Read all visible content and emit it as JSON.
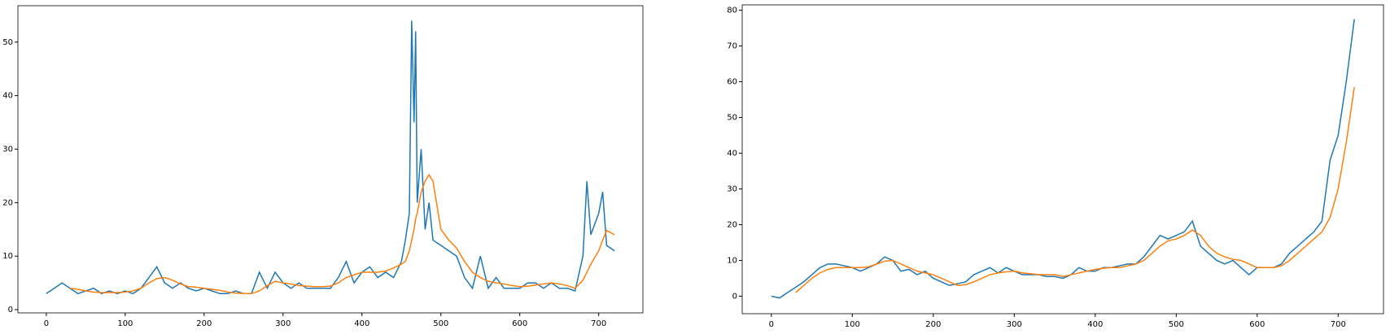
{
  "chart_data": [
    {
      "type": "line",
      "x": [
        0,
        10,
        20,
        30,
        40,
        50,
        60,
        70,
        80,
        90,
        100,
        110,
        120,
        130,
        140,
        150,
        160,
        170,
        180,
        190,
        200,
        210,
        220,
        230,
        240,
        250,
        260,
        270,
        280,
        290,
        300,
        310,
        320,
        330,
        340,
        350,
        360,
        370,
        380,
        390,
        400,
        410,
        420,
        430,
        440,
        450,
        455,
        460,
        463,
        466,
        468,
        470,
        475,
        480,
        485,
        490,
        500,
        510,
        520,
        530,
        540,
        550,
        560,
        570,
        580,
        590,
        600,
        610,
        620,
        630,
        640,
        650,
        660,
        670,
        680,
        685,
        690,
        700,
        705,
        710,
        720
      ],
      "series": [
        {
          "color": "#1f77b4",
          "values": [
            3,
            4,
            5,
            4,
            3,
            3.5,
            4,
            3,
            3.5,
            3,
            3.5,
            3,
            4,
            6,
            8,
            5,
            4,
            5,
            4,
            3.5,
            4,
            3.5,
            3,
            3,
            3.5,
            3,
            3,
            7,
            4,
            7,
            5,
            4,
            5,
            4,
            4,
            4,
            4,
            6,
            9,
            5,
            7,
            8,
            6,
            7,
            6,
            9,
            13,
            18,
            54,
            35,
            52,
            20,
            30,
            15,
            20,
            13,
            12,
            11,
            10,
            6,
            4,
            10,
            4,
            6,
            4,
            4,
            4,
            5,
            5,
            4,
            5,
            4,
            4,
            3.5,
            10,
            24,
            14,
            18,
            22,
            12,
            11
          ]
        },
        {
          "color": "#ff7f0e",
          "values": [
            null,
            null,
            null,
            4,
            3.8,
            3.5,
            3.3,
            3.2,
            3.2,
            3.2,
            3.3,
            3.5,
            4,
            5,
            5.8,
            6,
            5.5,
            4.8,
            4.3,
            4.2,
            4,
            3.8,
            3.6,
            3.3,
            3.1,
            3,
            3,
            3.5,
            4.5,
            5.3,
            5,
            4.8,
            4.5,
            4.4,
            4.3,
            4.3,
            4.4,
            5,
            6,
            6.5,
            7,
            7,
            7,
            7.2,
            7.8,
            8.5,
            9,
            11,
            13,
            15,
            17,
            18,
            22,
            24,
            25.2,
            24,
            15,
            13,
            11.5,
            9,
            7,
            6,
            5.3,
            5,
            4.8,
            4.5,
            4.3,
            4.4,
            4.6,
            4.8,
            5,
            4.8,
            4.5,
            4,
            5.5,
            7,
            8.5,
            11,
            13,
            14.8,
            14
          ]
        }
      ],
      "xlim": [
        -36,
        756
      ],
      "xticks": [
        0,
        100,
        200,
        300,
        400,
        500,
        600,
        700
      ],
      "ylim": [
        -0.6,
        56.8
      ],
      "yticks": [
        0,
        10,
        20,
        30,
        40,
        50
      ]
    },
    {
      "type": "line",
      "x": [
        0,
        10,
        20,
        30,
        40,
        50,
        60,
        70,
        80,
        90,
        100,
        110,
        120,
        130,
        140,
        150,
        160,
        170,
        180,
        190,
        200,
        210,
        220,
        230,
        240,
        250,
        260,
        270,
        280,
        290,
        300,
        310,
        320,
        330,
        340,
        350,
        360,
        370,
        380,
        390,
        400,
        410,
        420,
        430,
        440,
        450,
        460,
        470,
        480,
        490,
        500,
        510,
        520,
        530,
        540,
        550,
        560,
        570,
        580,
        590,
        600,
        610,
        620,
        630,
        640,
        650,
        660,
        670,
        680,
        690,
        700,
        710,
        720
      ],
      "series": [
        {
          "color": "#1f77b4",
          "values": [
            0,
            -0.5,
            1,
            2.5,
            4,
            6,
            8,
            9,
            9,
            8.5,
            8,
            7,
            8,
            9,
            11,
            10,
            7,
            7.5,
            6,
            7,
            5,
            4,
            3,
            3.5,
            4,
            6,
            7,
            8,
            6.5,
            8,
            7,
            6,
            6,
            6,
            5.5,
            5.5,
            5,
            6,
            8,
            7,
            7,
            8,
            8,
            8.5,
            9,
            9,
            11,
            14,
            17,
            16,
            17,
            18,
            21,
            14,
            12,
            10,
            9,
            10,
            8,
            6,
            8,
            8,
            8,
            9,
            12,
            14,
            16,
            18,
            21,
            38,
            45,
            60,
            77.5
          ]
        },
        {
          "color": "#ff7f0e",
          "values": [
            null,
            null,
            null,
            1,
            3,
            5,
            6.5,
            7.5,
            8,
            8,
            8,
            8,
            8.2,
            9,
            9.8,
            10,
            9,
            8,
            7,
            6.5,
            6,
            5,
            4,
            3,
            3.2,
            4,
            5,
            6,
            6.5,
            6.8,
            7,
            6.5,
            6.3,
            6,
            6,
            6,
            5.5,
            6,
            6.5,
            7,
            7.5,
            7.8,
            8,
            8,
            8.5,
            9,
            10,
            12,
            14,
            15.5,
            16,
            17,
            18.5,
            17,
            14,
            12,
            11,
            10.3,
            10,
            9,
            8,
            8,
            8,
            8.5,
            10,
            12,
            14,
            16,
            18,
            22,
            30,
            43,
            58.5
          ]
        }
      ],
      "xlim": [
        -36,
        756
      ],
      "xticks": [
        0,
        100,
        200,
        300,
        400,
        500,
        600,
        700
      ],
      "ylim": [
        -4.9,
        81.5
      ],
      "yticks": [
        0,
        10,
        20,
        30,
        40,
        50,
        60,
        70,
        80
      ]
    }
  ]
}
